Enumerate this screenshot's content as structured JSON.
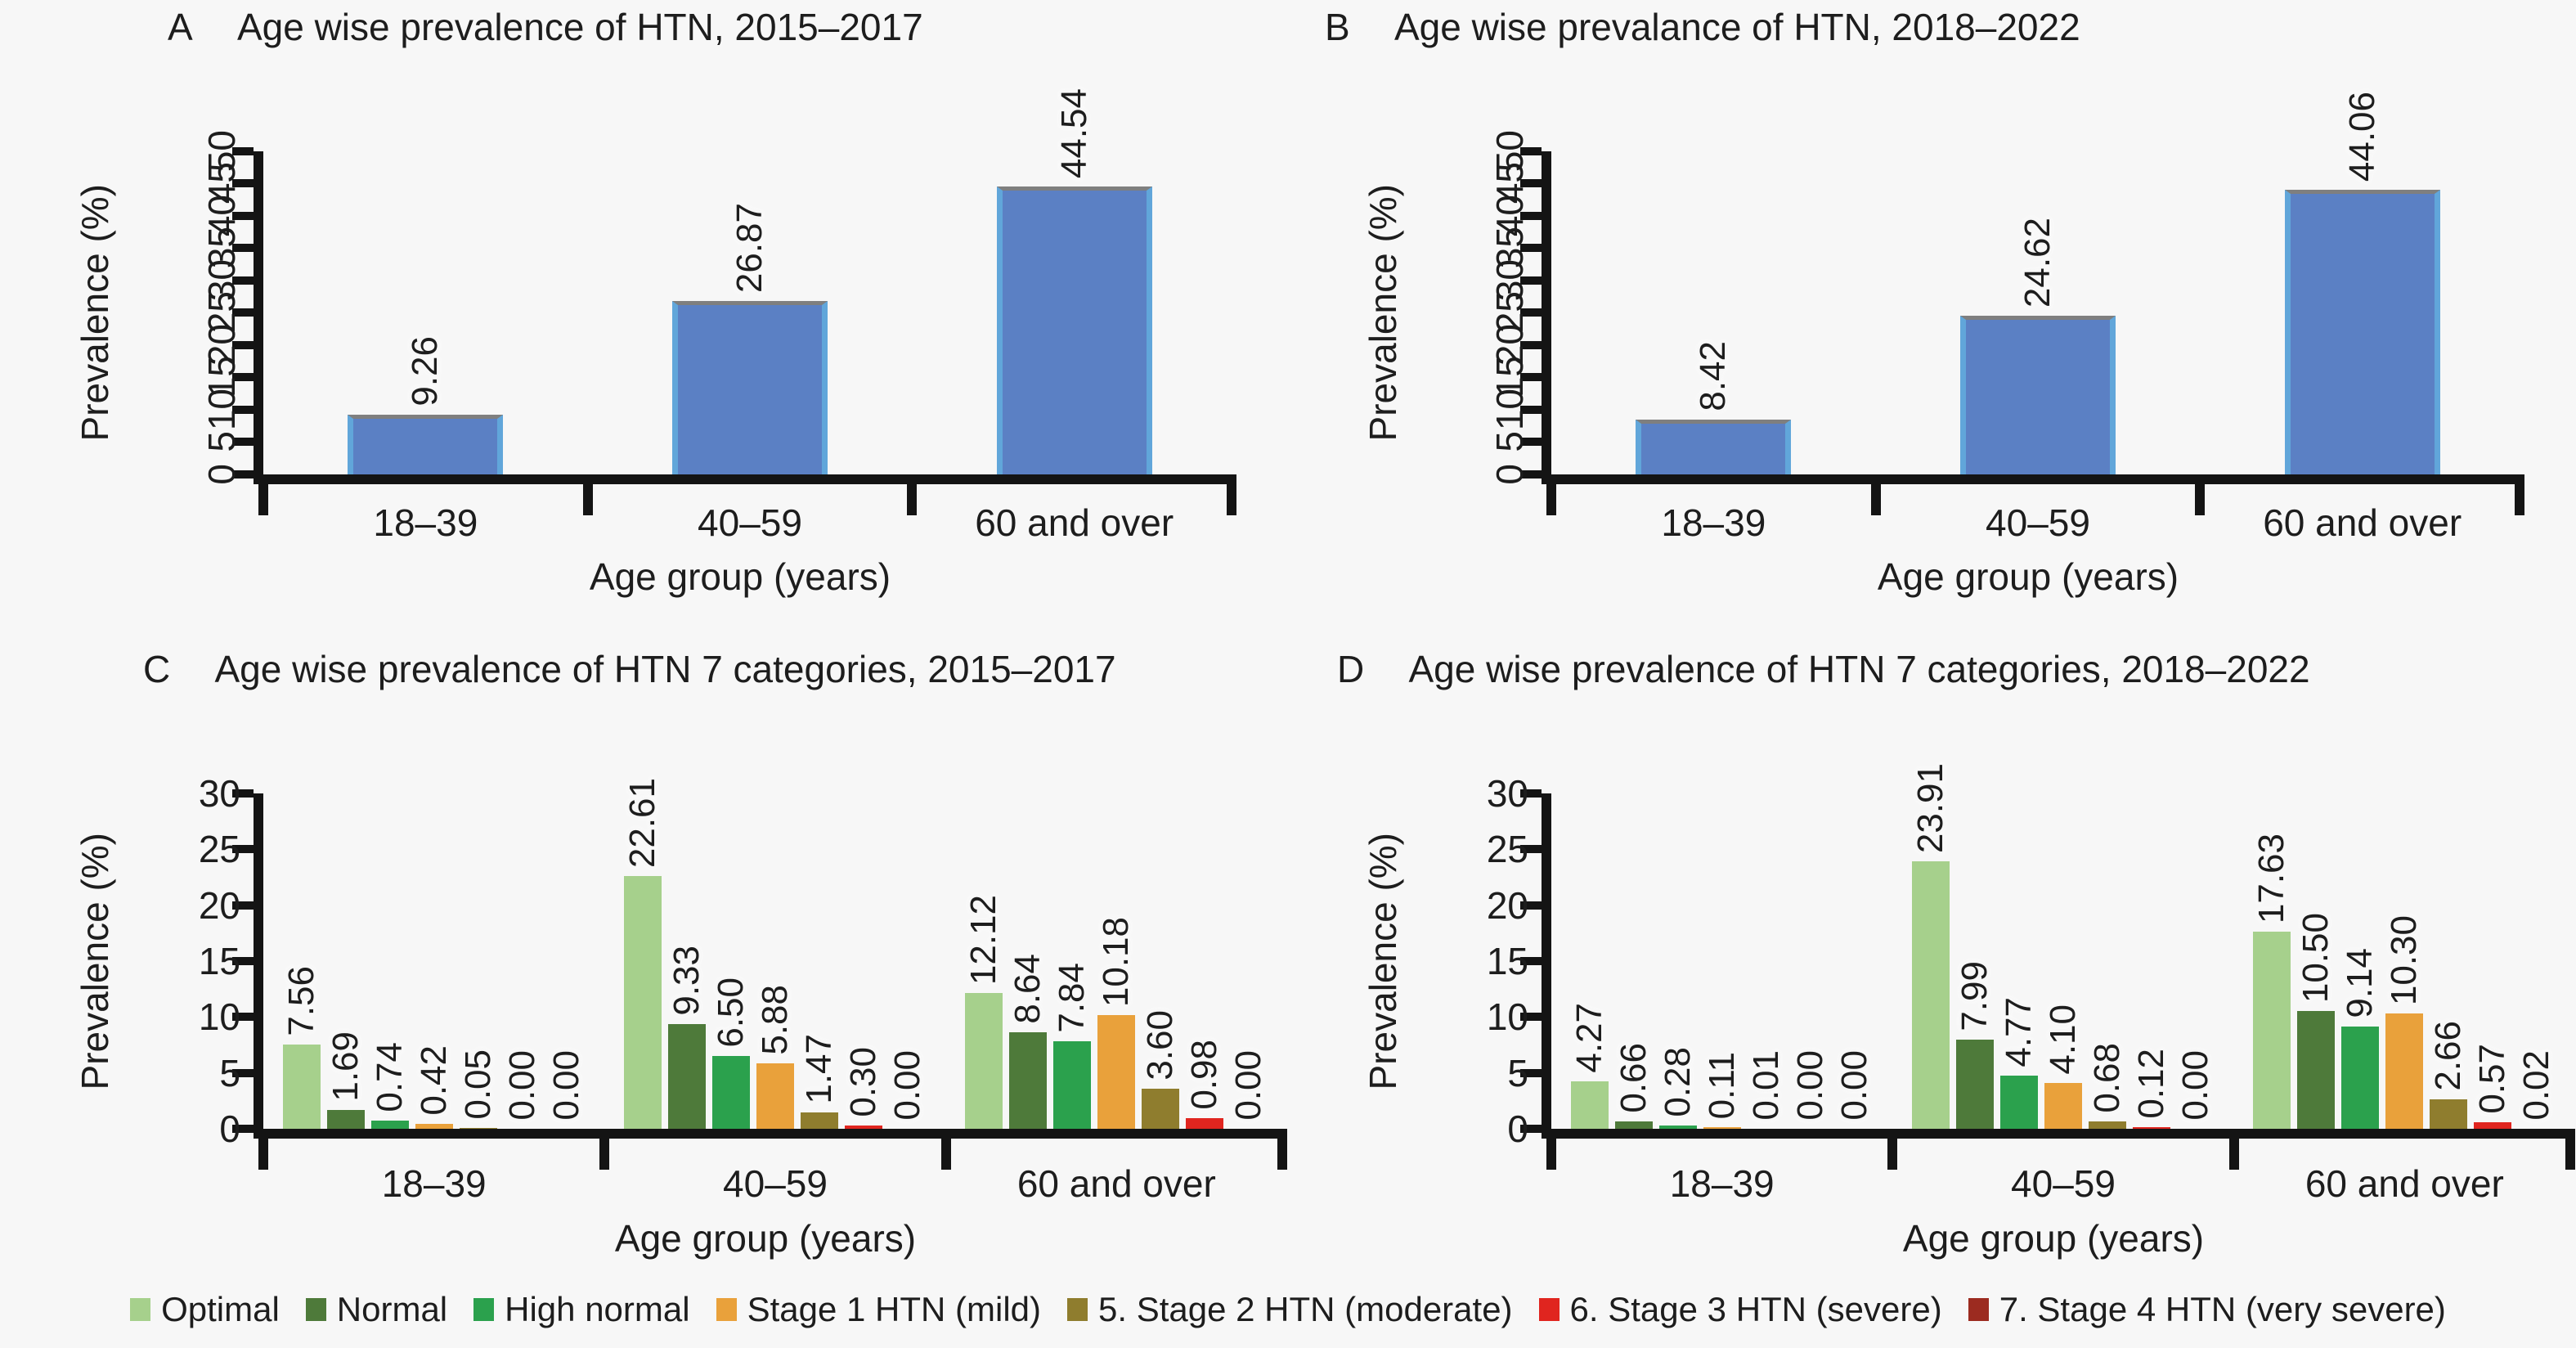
{
  "figure": {
    "background": "#f7f7f7",
    "axis_color": "#141414",
    "text_color": "#1d1d1d"
  },
  "chart_data": [
    {
      "type": "bar",
      "panel": "A",
      "title": "Age wise prevalence of HTN, 2015–2017",
      "ylabel": "Prevalence (%)",
      "xlabel": "Age group (years)",
      "ylim": [
        0,
        50
      ],
      "ystep": 5,
      "rotated_yticks": true,
      "categories": [
        "18–39",
        "40–59",
        "60 and over"
      ],
      "series": [
        {
          "name": "Prevalence",
          "color": "#5b80c4",
          "values": [
            9.26,
            26.87,
            44.54
          ]
        }
      ]
    },
    {
      "type": "bar",
      "panel": "B",
      "title": "Age wise prevalance of HTN, 2018–2022",
      "ylabel": "Prevalence (%)",
      "xlabel": "Age group (years)",
      "ylim": [
        0,
        50
      ],
      "ystep": 5,
      "rotated_yticks": true,
      "categories": [
        "18–39",
        "40–59",
        "60 and over"
      ],
      "series": [
        {
          "name": "Prevalence",
          "color": "#5b80c4",
          "values": [
            8.42,
            24.62,
            44.06
          ]
        }
      ]
    },
    {
      "type": "bar",
      "panel": "C",
      "title": "Age wise prevalence of HTN 7 categories, 2015–2017",
      "ylabel": "Prevalence (%)",
      "xlabel": "Age group (years)",
      "ylim": [
        0,
        30
      ],
      "ystep": 5,
      "rotated_yticks": false,
      "categories": [
        "18–39",
        "40–59",
        "60 and over"
      ],
      "series": [
        {
          "name": "Optimal",
          "color": "#a6d08c",
          "values": [
            7.56,
            22.61,
            12.12
          ]
        },
        {
          "name": "Normal",
          "color": "#4e7a3a",
          "values": [
            1.69,
            9.33,
            8.64
          ]
        },
        {
          "name": "High normal",
          "color": "#2ba14d",
          "values": [
            0.74,
            6.5,
            7.84
          ]
        },
        {
          "name": "Stage 1 HTN (mild)",
          "color": "#e9a13b",
          "values": [
            0.42,
            5.88,
            10.18
          ]
        },
        {
          "name": "5. Stage 2 HTN (moderate)",
          "color": "#8f7d2e",
          "values": [
            0.05,
            1.47,
            3.6
          ]
        },
        {
          "name": "6. Stage 3 HTN (severe)",
          "color": "#e0251f",
          "values": [
            0.0,
            0.3,
            0.98
          ]
        },
        {
          "name": "7. Stage 4 HTN (very severe)",
          "color": "#9c2b20",
          "values": [
            0.0,
            0.0,
            0.0
          ]
        }
      ]
    },
    {
      "type": "bar",
      "panel": "D",
      "title": "Age wise prevalence of HTN 7 categories, 2018–2022",
      "ylabel": "Prevalence (%)",
      "xlabel": "Age group (years)",
      "ylim": [
        0,
        30
      ],
      "ystep": 5,
      "rotated_yticks": false,
      "categories": [
        "18–39",
        "40–59",
        "60 and over"
      ],
      "series": [
        {
          "name": "Optimal",
          "color": "#a6d08c",
          "values": [
            4.27,
            23.91,
            17.63
          ]
        },
        {
          "name": "Normal",
          "color": "#4e7a3a",
          "values": [
            0.66,
            7.99,
            10.5
          ]
        },
        {
          "name": "High normal",
          "color": "#2ba14d",
          "values": [
            0.28,
            4.77,
            9.14
          ]
        },
        {
          "name": "Stage 1 HTN (mild)",
          "color": "#e9a13b",
          "values": [
            0.11,
            4.1,
            10.3
          ]
        },
        {
          "name": "5. Stage 2 HTN (moderate)",
          "color": "#8f7d2e",
          "values": [
            0.01,
            0.68,
            2.66
          ]
        },
        {
          "name": "6. Stage 3 HTN (severe)",
          "color": "#e0251f",
          "values": [
            0.0,
            0.12,
            0.57
          ]
        },
        {
          "name": "7. Stage 4 HTN (very severe)",
          "color": "#9c2b20",
          "values": [
            0.0,
            0.0,
            0.02
          ]
        }
      ]
    }
  ],
  "legend": {
    "items": [
      {
        "label": "Optimal",
        "color": "#a6d08c"
      },
      {
        "label": "Normal",
        "color": "#4e7a3a"
      },
      {
        "label": "High normal",
        "color": "#2ba14d"
      },
      {
        "label": "Stage 1 HTN (mild)",
        "color": "#e9a13b"
      },
      {
        "label": "5. Stage 2 HTN (moderate)",
        "color": "#8f7d2e"
      },
      {
        "label": "6. Stage 3 HTN (severe)",
        "color": "#e0251f"
      },
      {
        "label": "7. Stage 4 HTN (very severe)",
        "color": "#9c2b20"
      }
    ]
  }
}
